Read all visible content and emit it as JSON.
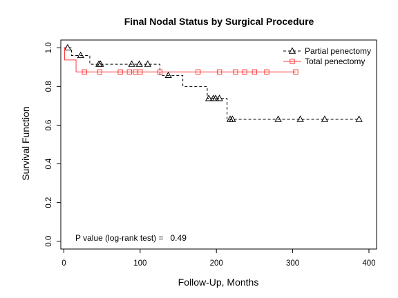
{
  "chart_data": {
    "type": "line",
    "subtype": "kaplan-meier step plot with censor marks",
    "title": "Final Nodal Status by Surgical Procedure",
    "xlabel": "Follow-Up, Months",
    "ylabel": "Survival Function",
    "xlim": [
      0,
      400
    ],
    "ylim": [
      0,
      1
    ],
    "x_ticks": [
      0,
      100,
      200,
      300,
      400
    ],
    "y_ticks": [
      0.0,
      0.2,
      0.4,
      0.6,
      0.8,
      1.0
    ],
    "x_tick_labels": [
      "0",
      "100",
      "200",
      "300",
      "400"
    ],
    "y_tick_labels": [
      "0.0",
      "0.2",
      "0.4",
      "0.6",
      "0.8",
      "1.0"
    ],
    "grid": false,
    "legend_position": "top-right",
    "annotation": "P value (log-rank test) =   0.49",
    "series": [
      {
        "name": "Partial penectomy",
        "color": "#000000",
        "line_style": "dashed",
        "marker": "triangle",
        "steps": [
          [
            0,
            1.0
          ],
          [
            10,
            0.96
          ],
          [
            34,
            0.915
          ],
          [
            126,
            0.857
          ],
          [
            156,
            0.8
          ],
          [
            188,
            0.738
          ],
          [
            214,
            0.63
          ],
          [
            387,
            0.63
          ]
        ],
        "censored": [
          [
            5,
            1.0
          ],
          [
            22,
            0.96
          ],
          [
            46,
            0.915
          ],
          [
            48,
            0.915
          ],
          [
            89,
            0.915
          ],
          [
            99,
            0.915
          ],
          [
            110,
            0.915
          ],
          [
            137,
            0.857
          ],
          [
            190,
            0.738
          ],
          [
            196,
            0.738
          ],
          [
            199,
            0.738
          ],
          [
            204,
            0.738
          ],
          [
            218,
            0.63
          ],
          [
            221,
            0.63
          ],
          [
            281,
            0.63
          ],
          [
            310,
            0.63
          ],
          [
            342,
            0.63
          ],
          [
            387,
            0.63
          ]
        ]
      },
      {
        "name": "Total penectomy",
        "color": "#ff3b3b",
        "line_style": "solid",
        "marker": "square",
        "steps": [
          [
            0,
            1.0
          ],
          [
            1,
            0.937
          ],
          [
            16,
            0.875
          ],
          [
            304,
            0.875
          ]
        ],
        "censored": [
          [
            27,
            0.875
          ],
          [
            47,
            0.875
          ],
          [
            74,
            0.875
          ],
          [
            86,
            0.875
          ],
          [
            94,
            0.875
          ],
          [
            100,
            0.875
          ],
          [
            126,
            0.875
          ],
          [
            176,
            0.875
          ],
          [
            204,
            0.875
          ],
          [
            225,
            0.875
          ],
          [
            237,
            0.875
          ],
          [
            250,
            0.875
          ],
          [
            266,
            0.875
          ],
          [
            304,
            0.875
          ]
        ]
      }
    ]
  }
}
